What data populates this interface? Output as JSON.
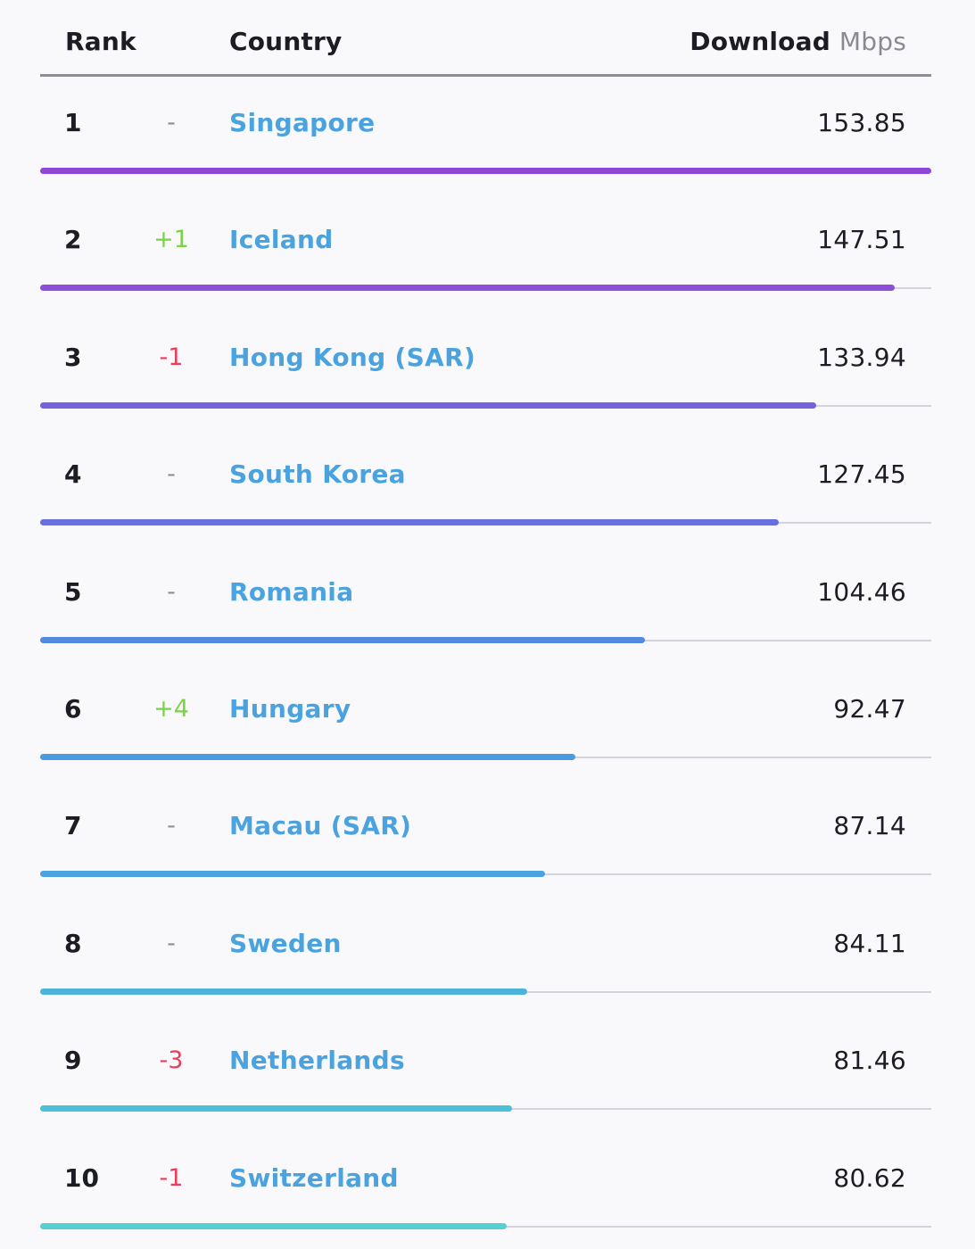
{
  "header": {
    "rank_label": "Rank",
    "country_label": "Country",
    "download_label": "Download",
    "unit_label": "Mbps"
  },
  "max_value": 153.85,
  "rows": [
    {
      "rank": "1",
      "change": "-",
      "change_dir": "none",
      "country": "Singapore",
      "value": "153.85",
      "speed": 153.85,
      "bar_color": "#9147d6"
    },
    {
      "rank": "2",
      "change": "+1",
      "change_dir": "up",
      "country": "Iceland",
      "value": "147.51",
      "speed": 147.51,
      "bar_color": "#8d4fd9"
    },
    {
      "rank": "3",
      "change": "-1",
      "change_dir": "down",
      "country": "Hong Kong (SAR)",
      "value": "133.94",
      "speed": 133.94,
      "bar_color": "#7662dc"
    },
    {
      "rank": "4",
      "change": "-",
      "change_dir": "none",
      "country": "South Korea",
      "value": "127.45",
      "speed": 127.45,
      "bar_color": "#6a6fdf"
    },
    {
      "rank": "5",
      "change": "-",
      "change_dir": "none",
      "country": "Romania",
      "value": "104.46",
      "speed": 104.46,
      "bar_color": "#5489e0"
    },
    {
      "rank": "6",
      "change": "+4",
      "change_dir": "up",
      "country": "Hungary",
      "value": "92.47",
      "speed": 92.47,
      "bar_color": "#4b9be0"
    },
    {
      "rank": "7",
      "change": "-",
      "change_dir": "none",
      "country": "Macau (SAR)",
      "value": "87.14",
      "speed": 87.14,
      "bar_color": "#4aa3df"
    },
    {
      "rank": "8",
      "change": "-",
      "change_dir": "none",
      "country": "Sweden",
      "value": "84.11",
      "speed": 84.11,
      "bar_color": "#4cb4dc"
    },
    {
      "rank": "9",
      "change": "-3",
      "change_dir": "down",
      "country": "Netherlands",
      "value": "81.46",
      "speed": 81.46,
      "bar_color": "#4cc0d8"
    },
    {
      "rank": "10",
      "change": "-1",
      "change_dir": "down",
      "country": "Switzerland",
      "value": "80.62",
      "speed": 80.62,
      "bar_color": "#54d0d2"
    }
  ]
}
